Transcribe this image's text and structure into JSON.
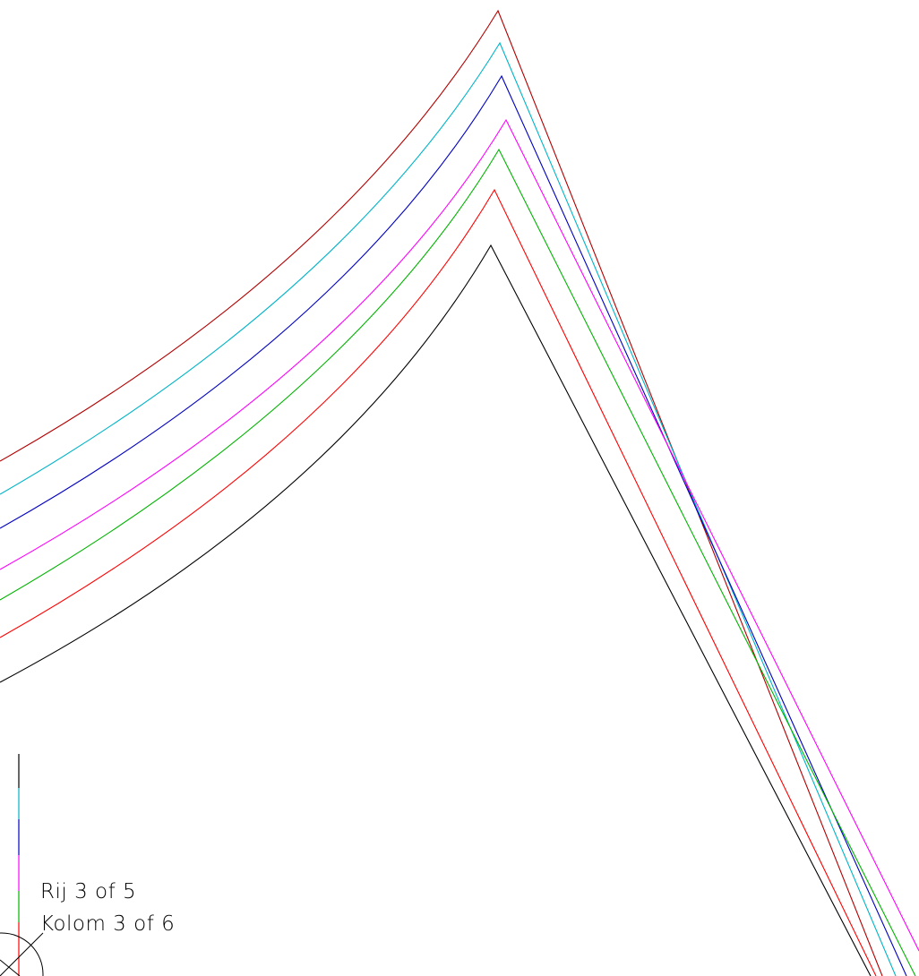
{
  "page_labels": {
    "row_label": "Rij 3  of 5",
    "column_label": "Kolom 3  of 6"
  },
  "line_colors": {
    "dark_red": "#b30000",
    "cyan": "#00b4c8",
    "blue": "#0000c0",
    "magenta": "#ff00ff",
    "green": "#00b400",
    "red": "#ff0000",
    "black": "#000000"
  },
  "icon_names": [
    "north-arrow-circle-icon"
  ]
}
